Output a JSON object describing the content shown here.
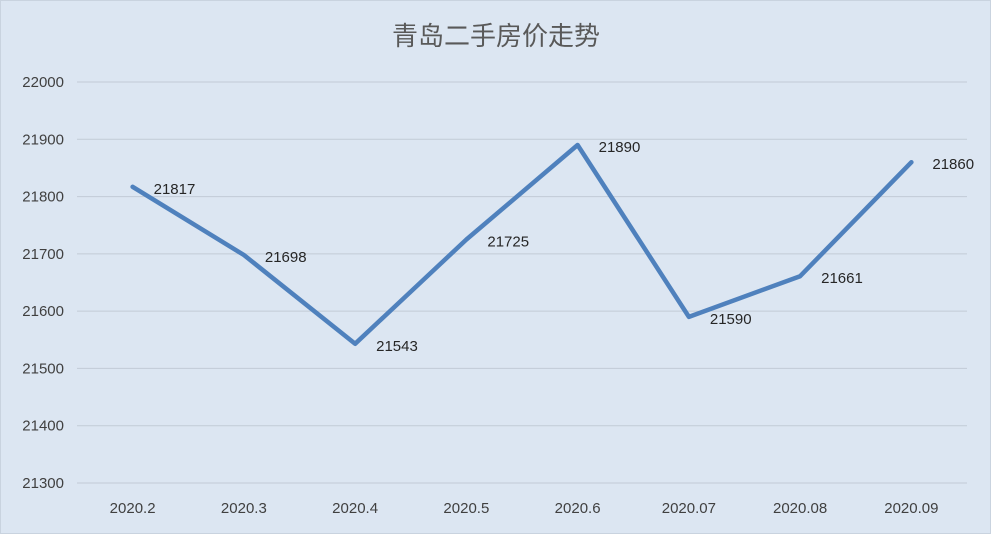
{
  "chart_data": {
    "type": "line",
    "title": "青岛二手房价走势",
    "categories": [
      "2020.2",
      "2020.3",
      "2020.4",
      "2020.5",
      "2020.6",
      "2020.07",
      "2020.08",
      "2020.09"
    ],
    "series": [
      {
        "values": [
          21817,
          21698,
          21543,
          21725,
          21890,
          21590,
          21661,
          21860
        ]
      }
    ],
    "data_labels": [
      "21817",
      "21698",
      "21543",
      "21725",
      "21890",
      "21590",
      "21661",
      "21860"
    ],
    "ylim": [
      21300,
      22000
    ],
    "yticks": [
      22000,
      21900,
      21800,
      21700,
      21600,
      21500,
      21400,
      21300
    ],
    "ytick_labels": [
      "22000",
      "21900",
      "21800",
      "21700",
      "21600",
      "21500",
      "21400",
      "21300"
    ],
    "grid": true,
    "legend": "none",
    "colors": {
      "line": "#4f81bd",
      "background": "#dce6f2",
      "grid": "#c2cbd6"
    }
  }
}
